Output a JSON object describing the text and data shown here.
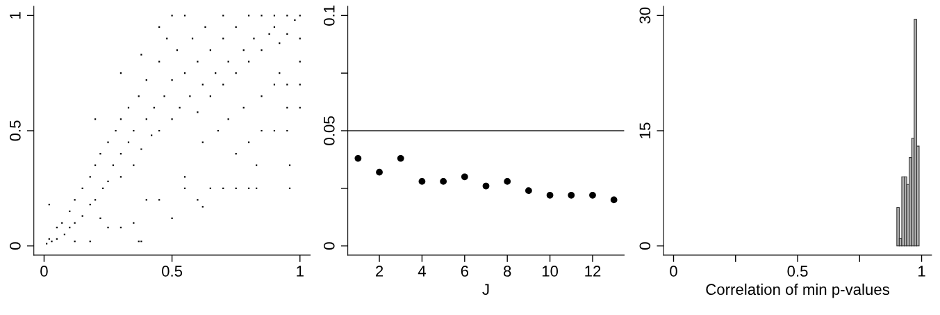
{
  "chart_data": [
    {
      "type": "scatter",
      "xlim": [
        -0.04,
        1.04
      ],
      "ylim": [
        -0.04,
        1.04
      ],
      "xticks": [
        0,
        0.5,
        1
      ],
      "yticks": [
        0,
        0.5,
        1
      ],
      "grid": false,
      "legend": false,
      "marker": "square",
      "series": [
        {
          "color": "#000000",
          "x": [
            0.01,
            0.02,
            0.03,
            0.05,
            0.05,
            0.07,
            0.08,
            0.1,
            0.1,
            0.12,
            0.12,
            0.15,
            0.15,
            0.18,
            0.18,
            0.2,
            0.2,
            0.22,
            0.23,
            0.25,
            0.25,
            0.27,
            0.28,
            0.3,
            0.3,
            0.3,
            0.33,
            0.33,
            0.35,
            0.35,
            0.37,
            0.38,
            0.4,
            0.4,
            0.42,
            0.43,
            0.45,
            0.45,
            0.47,
            0.48,
            0.5,
            0.5,
            0.52,
            0.53,
            0.55,
            0.55,
            0.57,
            0.58,
            0.6,
            0.6,
            0.62,
            0.63,
            0.65,
            0.65,
            0.67,
            0.7,
            0.7,
            0.7,
            0.72,
            0.75,
            0.75,
            0.78,
            0.8,
            0.8,
            0.82,
            0.85,
            0.85,
            0.88,
            0.9,
            0.9,
            0.92,
            0.95,
            0.95,
            0.98,
            1.0,
            1.0,
            1.0,
            0.02,
            0.12,
            0.18,
            0.37,
            0.38,
            0.45,
            0.5,
            0.55,
            0.6,
            0.62,
            0.65,
            0.7,
            0.75,
            0.8,
            0.83,
            0.83,
            0.96,
            0.96,
            0.75,
            0.8,
            0.85,
            0.9,
            0.95,
            0.95,
            1.0,
            1.0,
            0.95,
            0.2,
            0.3,
            0.38,
            0.45,
            0.5,
            0.55,
            0.4,
            0.35,
            0.3,
            0.25,
            0.22,
            0.62,
            0.68,
            0.72,
            0.78,
            0.85,
            0.9,
            0.92
          ],
          "values": [
            0.01,
            0.03,
            0.02,
            0.08,
            0.03,
            0.1,
            0.05,
            0.15,
            0.08,
            0.2,
            0.1,
            0.25,
            0.13,
            0.3,
            0.18,
            0.35,
            0.2,
            0.4,
            0.25,
            0.45,
            0.28,
            0.35,
            0.5,
            0.4,
            0.3,
            0.55,
            0.45,
            0.6,
            0.35,
            0.5,
            0.65,
            0.42,
            0.55,
            0.72,
            0.48,
            0.6,
            0.8,
            0.5,
            0.65,
            0.9,
            0.55,
            0.72,
            0.85,
            0.6,
            0.75,
            1.0,
            0.65,
            0.9,
            0.58,
            0.8,
            0.7,
            0.95,
            0.65,
            0.85,
            0.75,
            0.7,
            0.9,
            1.0,
            0.8,
            0.75,
            0.95,
            0.85,
            0.8,
            1.0,
            0.9,
            0.85,
            1.0,
            0.92,
            0.95,
            1.0,
            0.88,
            1.0,
            0.92,
            0.98,
            1.0,
            0.9,
            0.8,
            0.18,
            0.02,
            0.02,
            0.02,
            0.02,
            0.2,
            0.12,
            0.25,
            0.2,
            0.17,
            0.25,
            0.25,
            0.25,
            0.25,
            0.25,
            0.35,
            0.25,
            0.35,
            0.4,
            0.45,
            0.5,
            0.5,
            0.5,
            0.6,
            0.6,
            0.7,
            0.7,
            0.55,
            0.75,
            0.83,
            0.95,
            1.0,
            0.3,
            0.2,
            0.1,
            0.08,
            0.08,
            0.12,
            0.45,
            0.5,
            0.55,
            0.6,
            0.65,
            0.7,
            0.75
          ]
        }
      ]
    },
    {
      "type": "scatter",
      "xlabel": "J",
      "xlim": [
        0.52,
        13.48
      ],
      "ylim": [
        -0.004,
        0.104
      ],
      "xticks": [
        2,
        4,
        6,
        8,
        10,
        12
      ],
      "yticks": [
        0,
        {
          "value": 0.025,
          "label": null
        },
        0.05,
        {
          "value": 0.075,
          "label": null
        },
        0.1
      ],
      "grid": false,
      "legend": false,
      "marker": "circle",
      "x": [
        1,
        2,
        3,
        4,
        5,
        6,
        7,
        8,
        9,
        10,
        11,
        12,
        13
      ],
      "series": [
        {
          "color": "#000000",
          "values": [
            0.038,
            0.032,
            0.038,
            0.028,
            0.028,
            0.03,
            0.026,
            0.028,
            0.024,
            0.022,
            0.022,
            0.022,
            0.02
          ]
        }
      ],
      "ref_lines": [
        {
          "axis": "y",
          "value": 0.05,
          "color": "#555555"
        }
      ]
    },
    {
      "type": "histogram",
      "xlabel": "Correlation of min p-values",
      "xlim": [
        -0.04,
        1.04
      ],
      "ylim": [
        -1.2,
        31.2
      ],
      "xticks": [
        0,
        {
          "value": 0.25,
          "label": null
        },
        0.5,
        {
          "value": 0.75,
          "label": null
        },
        1
      ],
      "yticks": [
        0,
        15,
        30
      ],
      "grid": false,
      "legend": false,
      "bins": [
        0.9,
        0.91,
        0.92,
        0.93,
        0.94,
        0.95,
        0.96,
        0.97,
        0.98,
        0.99
      ],
      "values": [
        5,
        1,
        9,
        9,
        8,
        11.5,
        14,
        29.5,
        13
      ],
      "color": "#b3b3b3"
    }
  ]
}
